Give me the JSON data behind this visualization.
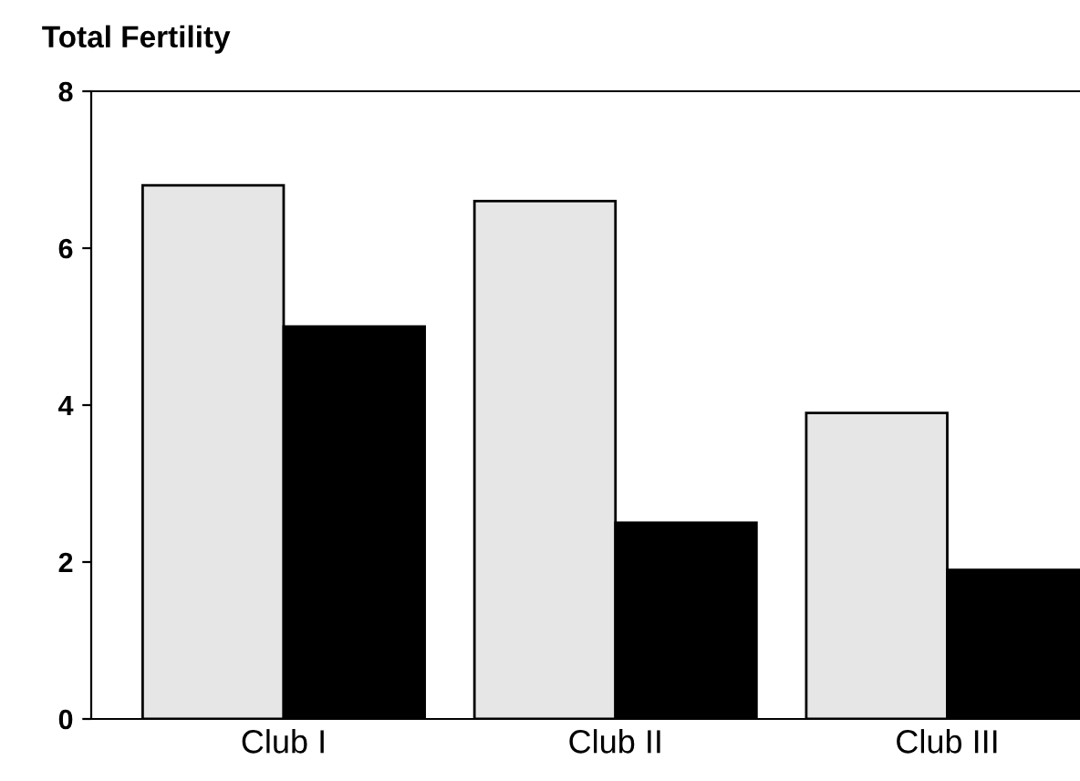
{
  "chart_data": {
    "type": "bar",
    "ylabel": "Total Fertility",
    "categories": [
      "Club I",
      "Club II",
      "Club III"
    ],
    "series": [
      {
        "color": "#e6e6e6",
        "values": [
          6.8,
          6.6,
          3.9
        ]
      },
      {
        "color": "#000000",
        "values": [
          5.0,
          2.5,
          1.9
        ]
      }
    ],
    "ylim": [
      0,
      8
    ],
    "yticks": [
      0,
      2,
      4,
      6,
      8
    ],
    "grid": false,
    "legend": false
  }
}
